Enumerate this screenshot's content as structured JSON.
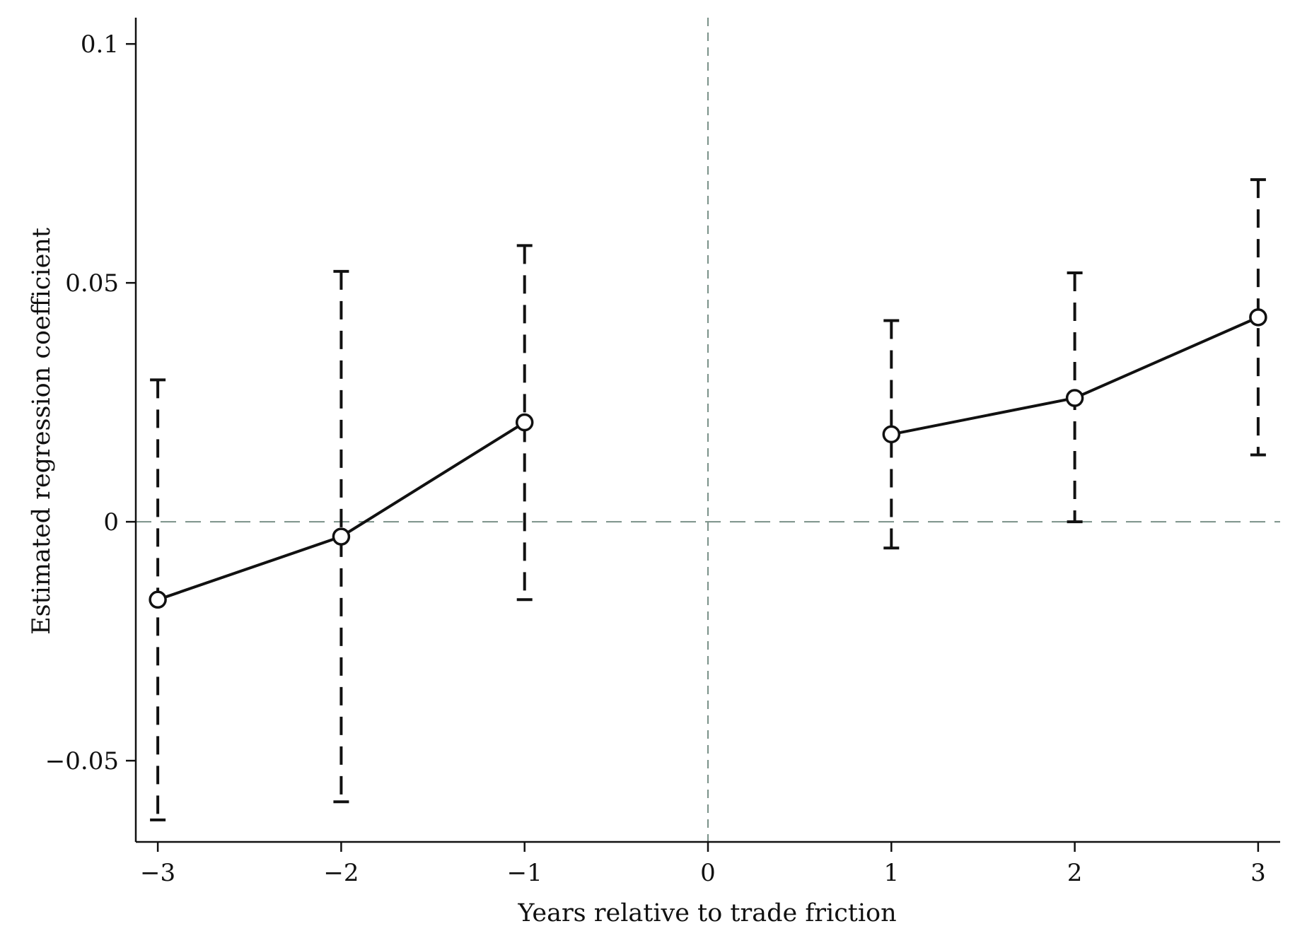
{
  "chart_data": {
    "type": "line",
    "title": "",
    "xlabel": "Years relative to trade friction",
    "ylabel": "Estimated regression coefficient",
    "xlim": [
      -3.12,
      3.12
    ],
    "ylim": [
      -0.067,
      0.1055
    ],
    "x_ticks": [
      -3,
      -2,
      -1,
      0,
      1,
      2,
      3
    ],
    "x_tick_labels": [
      "−3",
      "−2",
      "−1",
      "0",
      "1",
      "2",
      "3"
    ],
    "y_ticks": [
      -0.05,
      0,
      0.05,
      0.1
    ],
    "y_tick_labels": [
      "−0.05",
      "0",
      "0.05",
      "0.1"
    ],
    "grid": false,
    "reference_lines": {
      "x": 0,
      "y": 0,
      "style": "dashed",
      "color": "#7a9188"
    },
    "series": [
      {
        "segment": "pre",
        "x": [
          -3,
          -2,
          -1
        ],
        "y": [
          -0.0163,
          -0.0031,
          0.0208
        ],
        "ci_low": [
          -0.0624,
          -0.0586,
          -0.0163
        ],
        "ci_high": [
          0.0297,
          0.0524,
          0.0578
        ]
      },
      {
        "segment": "post",
        "x": [
          1,
          2,
          3
        ],
        "y": [
          0.0183,
          0.0259,
          0.0428
        ],
        "ci_low": [
          -0.0055,
          0.0,
          0.014
        ],
        "ci_high": [
          0.0421,
          0.0521,
          0.0716
        ]
      }
    ],
    "colors": {
      "line": "#111111",
      "axis": "#111111",
      "reference": "#7a9188"
    }
  }
}
